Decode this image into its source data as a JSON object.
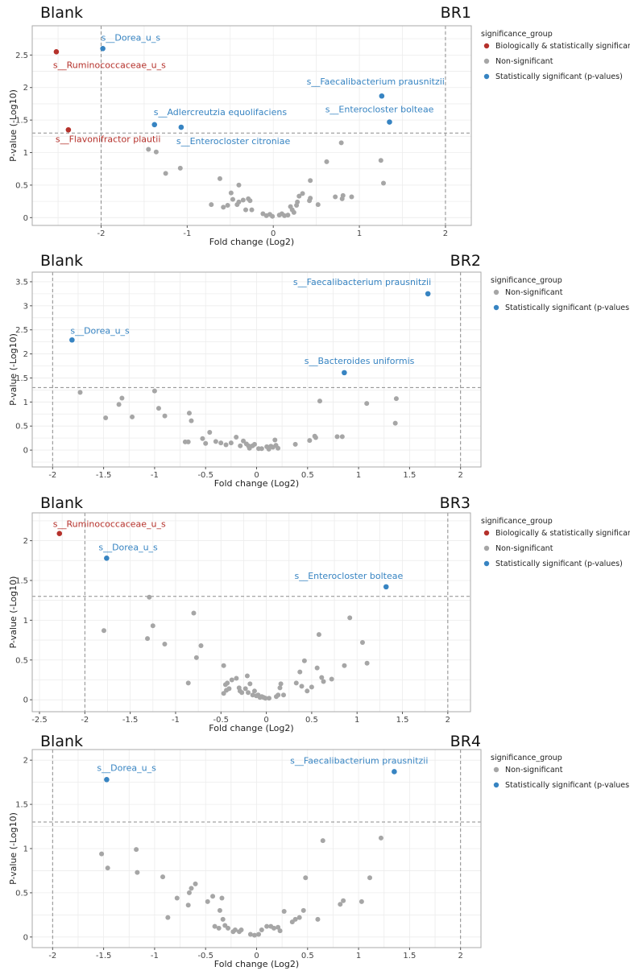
{
  "colors": {
    "biological": "#b5312b",
    "significant": "#3784c2",
    "nonsignificant": "#a6a6a6",
    "grid": "#ececec",
    "threshold_line": "#8c8c8c",
    "panel_border": "#aaaaaa"
  },
  "chart_data": [
    {
      "type": "scatter",
      "left_label": "Blank",
      "right_label": "BR1",
      "xlabel": "Fold change (Log2)",
      "ylabel": "P-value (-Log10)",
      "xlim": [
        -2.8,
        2.3
      ],
      "ylim": [
        -0.12,
        2.95
      ],
      "xticks": [
        -2,
        -1,
        0,
        1,
        2
      ],
      "yticks": [
        0,
        0.5,
        1,
        1.5,
        2,
        2.5
      ],
      "vlines": [
        -2,
        2
      ],
      "hline": 1.3,
      "grid": true,
      "legend_position": "right",
      "legend": {
        "title": "significance_group",
        "entries": [
          {
            "label": "Biologically & statistically significant",
            "group": "biological"
          },
          {
            "label": "Non-significant",
            "group": "nonsignificant"
          },
          {
            "label": "Statistically significant (p-values)",
            "group": "significant"
          }
        ]
      },
      "labeled_points": [
        {
          "label": "s__Dorea_u_s",
          "x": -1.98,
          "y": 2.6,
          "group": "significant",
          "label_anchor": "start",
          "label_dx": -2,
          "label_dy": -10
        },
        {
          "label": "s__Ruminococcaceae_u_s",
          "x": -2.52,
          "y": 2.55,
          "group": "biological",
          "label_anchor": "start",
          "label_dx": -4,
          "label_dy": 20
        },
        {
          "label": "s__Faecalibacterium prausnitzii",
          "x": 1.26,
          "y": 1.87,
          "group": "significant",
          "label_anchor": "end",
          "label_dx": 78,
          "label_dy": -14
        },
        {
          "label": "s__Adlercreutzia equolifaciens",
          "x": -1.38,
          "y": 1.43,
          "group": "significant",
          "label_anchor": "start",
          "label_dx": -1,
          "label_dy": -12
        },
        {
          "label": "s__Enterocloster bolteae",
          "x": 1.35,
          "y": 1.47,
          "group": "significant",
          "label_anchor": "end",
          "label_dx": 55,
          "label_dy": -12
        },
        {
          "label": "s__Flavonifractor plautii",
          "x": -2.38,
          "y": 1.35,
          "group": "biological",
          "label_anchor": "start",
          "label_dx": -16,
          "label_dy": 15
        },
        {
          "label": "s__Enterocloster citroniae",
          "x": -1.07,
          "y": 1.39,
          "group": "significant",
          "label_anchor": "start",
          "label_dx": -6,
          "label_dy": 21
        }
      ],
      "points": [
        [
          -1.45,
          1.05
        ],
        [
          -1.36,
          1.01
        ],
        [
          -1.08,
          0.76
        ],
        [
          -1.25,
          0.68
        ],
        [
          -0.72,
          0.2
        ],
        [
          -0.62,
          0.6
        ],
        [
          -0.58,
          0.16
        ],
        [
          -0.53,
          0.19
        ],
        [
          -0.49,
          0.38
        ],
        [
          -0.47,
          0.28
        ],
        [
          -0.42,
          0.2
        ],
        [
          -0.4,
          0.5
        ],
        [
          -0.4,
          0.24
        ],
        [
          -0.35,
          0.27
        ],
        [
          -0.32,
          0.12
        ],
        [
          -0.29,
          0.29
        ],
        [
          -0.27,
          0.26
        ],
        [
          -0.25,
          0.12
        ],
        [
          -0.12,
          0.06
        ],
        [
          -0.08,
          0.03
        ],
        [
          -0.04,
          0.05
        ],
        [
          -0.01,
          0.02
        ],
        [
          0.07,
          0.04
        ],
        [
          0.1,
          0.06
        ],
        [
          0.13,
          0.03
        ],
        [
          0.17,
          0.04
        ],
        [
          0.2,
          0.17
        ],
        [
          0.22,
          0.12
        ],
        [
          0.24,
          0.08
        ],
        [
          0.27,
          0.19
        ],
        [
          0.28,
          0.24
        ],
        [
          0.3,
          0.33
        ],
        [
          0.34,
          0.37
        ],
        [
          0.42,
          0.26
        ],
        [
          0.43,
          0.3
        ],
        [
          0.43,
          0.57
        ],
        [
          0.52,
          0.2
        ],
        [
          0.62,
          0.86
        ],
        [
          0.72,
          0.32
        ],
        [
          0.8,
          0.29
        ],
        [
          0.81,
          0.34
        ],
        [
          0.79,
          1.15
        ],
        [
          0.91,
          0.32
        ],
        [
          1.25,
          0.88
        ],
        [
          1.28,
          0.53
        ]
      ]
    },
    {
      "type": "scatter",
      "left_label": "Blank",
      "right_label": "BR2",
      "xlabel": "Fold change (Log2)",
      "ylabel": "P-value (-Log10)",
      "xlim": [
        -2.2,
        2.2
      ],
      "ylim": [
        -0.35,
        3.7
      ],
      "xticks": [
        -2,
        -1.5,
        -1,
        -0.5,
        0,
        0.5,
        1,
        1.5,
        2
      ],
      "yticks": [
        0,
        0.5,
        1,
        1.5,
        2,
        2.5,
        3,
        3.5
      ],
      "vlines": [
        -2,
        2
      ],
      "hline": 1.3,
      "grid": true,
      "legend_position": "right",
      "legend": {
        "title": "significance_group",
        "entries": [
          {
            "label": "Non-significant",
            "group": "nonsignificant"
          },
          {
            "label": "Statistically significant (p-values)",
            "group": "significant"
          }
        ]
      },
      "labeled_points": [
        {
          "label": "s__Faecalibacterium prausnitzii",
          "x": 1.68,
          "y": 3.25,
          "group": "significant",
          "label_anchor": "end",
          "label_dx": 4,
          "label_dy": -11
        },
        {
          "label": "s__Dorea_u_s",
          "x": -1.81,
          "y": 2.29,
          "group": "significant",
          "label_anchor": "start",
          "label_dx": -2,
          "label_dy": -8
        },
        {
          "label": "s__Bacteroides uniformis",
          "x": 0.86,
          "y": 1.61,
          "group": "significant",
          "label_anchor": "end",
          "label_dx": 87,
          "label_dy": -11
        }
      ],
      "points": [
        [
          -1.73,
          1.2
        ],
        [
          -1.48,
          0.67
        ],
        [
          -1.35,
          0.95
        ],
        [
          -1.32,
          1.08
        ],
        [
          -1.22,
          0.69
        ],
        [
          -1.0,
          1.23
        ],
        [
          -0.96,
          0.87
        ],
        [
          -0.9,
          0.71
        ],
        [
          -0.7,
          0.17
        ],
        [
          -0.67,
          0.17
        ],
        [
          -0.66,
          0.77
        ],
        [
          -0.64,
          0.61
        ],
        [
          -0.53,
          0.24
        ],
        [
          -0.5,
          0.14
        ],
        [
          -0.46,
          0.37
        ],
        [
          -0.4,
          0.18
        ],
        [
          -0.35,
          0.15
        ],
        [
          -0.3,
          0.11
        ],
        [
          -0.25,
          0.15
        ],
        [
          -0.2,
          0.27
        ],
        [
          -0.16,
          0.09
        ],
        [
          -0.13,
          0.19
        ],
        [
          -0.1,
          0.13
        ],
        [
          -0.08,
          0.09
        ],
        [
          -0.07,
          0.04
        ],
        [
          -0.04,
          0.09
        ],
        [
          -0.02,
          0.12
        ],
        [
          0.02,
          0.03
        ],
        [
          0.05,
          0.03
        ],
        [
          0.1,
          0.07
        ],
        [
          0.12,
          0.02
        ],
        [
          0.14,
          0.08
        ],
        [
          0.16,
          0.06
        ],
        [
          0.18,
          0.21
        ],
        [
          0.19,
          0.1
        ],
        [
          0.21,
          0.04
        ],
        [
          0.38,
          0.12
        ],
        [
          0.52,
          0.2
        ],
        [
          0.57,
          0.29
        ],
        [
          0.58,
          0.26
        ],
        [
          0.62,
          1.02
        ],
        [
          0.79,
          0.28
        ],
        [
          0.84,
          0.28
        ],
        [
          1.08,
          0.97
        ],
        [
          1.36,
          0.56
        ],
        [
          1.37,
          1.07
        ]
      ]
    },
    {
      "type": "scatter",
      "left_label": "Blank",
      "right_label": "BR3",
      "xlabel": "Fold change (Log2)",
      "ylabel": "P-value (-Log10)",
      "xlim": [
        -2.58,
        2.25
      ],
      "ylim": [
        -0.15,
        2.35
      ],
      "xticks": [
        -2.5,
        -2,
        -1.5,
        -1,
        -0.5,
        0,
        0.5,
        1,
        1.5,
        2
      ],
      "yticks": [
        0,
        0.5,
        1,
        1.5,
        2
      ],
      "vlines": [
        -2,
        2
      ],
      "hline": 1.3,
      "grid": true,
      "legend_position": "right",
      "legend": {
        "title": "significance_group",
        "entries": [
          {
            "label": "Biologically & statistically significant",
            "group": "biological"
          },
          {
            "label": "Non-significant",
            "group": "nonsignificant"
          },
          {
            "label": "Statistically significant (p-values)",
            "group": "significant"
          }
        ]
      },
      "labeled_points": [
        {
          "label": "s__Ruminococcaceae_u_s",
          "x": -2.28,
          "y": 2.09,
          "group": "biological",
          "label_anchor": "start",
          "label_dx": -8,
          "label_dy": -8
        },
        {
          "label": "s__Dorea_u_s",
          "x": -1.76,
          "y": 1.78,
          "group": "significant",
          "label_anchor": "start",
          "label_dx": -10,
          "label_dy": -10
        },
        {
          "label": "s__Enterocloster bolteae",
          "x": 1.32,
          "y": 1.42,
          "group": "significant",
          "label_anchor": "end",
          "label_dx": 21,
          "label_dy": -10
        }
      ],
      "points": [
        [
          -1.79,
          0.87
        ],
        [
          -1.31,
          0.77
        ],
        [
          -1.29,
          1.29
        ],
        [
          -1.25,
          0.93
        ],
        [
          -1.12,
          0.7
        ],
        [
          -0.86,
          0.21
        ],
        [
          -0.8,
          1.09
        ],
        [
          -0.77,
          0.53
        ],
        [
          -0.72,
          0.68
        ],
        [
          -0.47,
          0.43
        ],
        [
          -0.47,
          0.08
        ],
        [
          -0.45,
          0.19
        ],
        [
          -0.44,
          0.12
        ],
        [
          -0.43,
          0.21
        ],
        [
          -0.41,
          0.14
        ],
        [
          -0.38,
          0.25
        ],
        [
          -0.33,
          0.27
        ],
        [
          -0.3,
          0.15
        ],
        [
          -0.29,
          0.11
        ],
        [
          -0.27,
          0.09
        ],
        [
          -0.23,
          0.14
        ],
        [
          -0.21,
          0.3
        ],
        [
          -0.2,
          0.09
        ],
        [
          -0.18,
          0.2
        ],
        [
          -0.15,
          0.06
        ],
        [
          -0.13,
          0.11
        ],
        [
          -0.11,
          0.05
        ],
        [
          -0.09,
          0.06
        ],
        [
          -0.07,
          0.03
        ],
        [
          -0.05,
          0.04
        ],
        [
          -0.03,
          0.03
        ],
        [
          -0.01,
          0.02
        ],
        [
          0.03,
          0.02
        ],
        [
          0.11,
          0.04
        ],
        [
          0.13,
          0.06
        ],
        [
          0.15,
          0.15
        ],
        [
          0.16,
          0.2
        ],
        [
          0.19,
          0.06
        ],
        [
          0.33,
          0.21
        ],
        [
          0.37,
          0.35
        ],
        [
          0.39,
          0.17
        ],
        [
          0.42,
          0.49
        ],
        [
          0.45,
          0.11
        ],
        [
          0.5,
          0.16
        ],
        [
          0.56,
          0.4
        ],
        [
          0.58,
          0.82
        ],
        [
          0.61,
          0.28
        ],
        [
          0.63,
          0.23
        ],
        [
          0.72,
          0.26
        ],
        [
          0.86,
          0.43
        ],
        [
          0.92,
          1.03
        ],
        [
          1.06,
          0.72
        ],
        [
          1.11,
          0.46
        ]
      ]
    },
    {
      "type": "scatter",
      "left_label": "Blank",
      "right_label": "BR4",
      "xlabel": "Fold change (Log2)",
      "ylabel": "P-value (-Log10)",
      "xlim": [
        -2.2,
        2.2
      ],
      "ylim": [
        -0.12,
        2.12
      ],
      "xticks": [
        -2,
        -1.5,
        -1,
        -0.5,
        0,
        0.5,
        1,
        1.5,
        2
      ],
      "yticks": [
        0,
        0.5,
        1,
        1.5,
        2
      ],
      "vlines": [
        -2,
        2
      ],
      "hline": 1.3,
      "grid": true,
      "legend_position": "right",
      "legend": {
        "title": "significance_group",
        "entries": [
          {
            "label": "Non-significant",
            "group": "nonsignificant"
          },
          {
            "label": "Statistically significant (p-values)",
            "group": "significant"
          }
        ]
      },
      "labeled_points": [
        {
          "label": "s__Dorea_u_s",
          "x": -1.47,
          "y": 1.78,
          "group": "significant",
          "label_anchor": "start",
          "label_dx": -12,
          "label_dy": -11
        },
        {
          "label": "s__Faecalibacterium prausnitzii",
          "x": 1.35,
          "y": 1.87,
          "group": "significant",
          "label_anchor": "end",
          "label_dx": 42,
          "label_dy": -10
        }
      ],
      "points": [
        [
          -1.52,
          0.94
        ],
        [
          -1.46,
          0.78
        ],
        [
          -1.18,
          0.99
        ],
        [
          -1.17,
          0.73
        ],
        [
          -0.92,
          0.68
        ],
        [
          -0.87,
          0.22
        ],
        [
          -0.78,
          0.44
        ],
        [
          -0.67,
          0.36
        ],
        [
          -0.66,
          0.5
        ],
        [
          -0.64,
          0.55
        ],
        [
          -0.6,
          0.6
        ],
        [
          -0.48,
          0.4
        ],
        [
          -0.43,
          0.46
        ],
        [
          -0.41,
          0.12
        ],
        [
          -0.37,
          0.1
        ],
        [
          -0.36,
          0.3
        ],
        [
          -0.34,
          0.44
        ],
        [
          -0.33,
          0.2
        ],
        [
          -0.31,
          0.13
        ],
        [
          -0.28,
          0.1
        ],
        [
          -0.23,
          0.06
        ],
        [
          -0.21,
          0.08
        ],
        [
          -0.17,
          0.06
        ],
        [
          -0.15,
          0.08
        ],
        [
          -0.06,
          0.03
        ],
        [
          -0.02,
          0.02
        ],
        [
          0.02,
          0.03
        ],
        [
          0.05,
          0.08
        ],
        [
          0.1,
          0.12
        ],
        [
          0.14,
          0.12
        ],
        [
          0.17,
          0.1
        ],
        [
          0.21,
          0.11
        ],
        [
          0.23,
          0.07
        ],
        [
          0.27,
          0.29
        ],
        [
          0.35,
          0.17
        ],
        [
          0.38,
          0.2
        ],
        [
          0.42,
          0.22
        ],
        [
          0.46,
          0.3
        ],
        [
          0.48,
          0.67
        ],
        [
          0.6,
          0.2
        ],
        [
          0.65,
          1.09
        ],
        [
          0.82,
          0.37
        ],
        [
          0.85,
          0.41
        ],
        [
          1.03,
          0.4
        ],
        [
          1.11,
          0.67
        ],
        [
          1.22,
          1.12
        ]
      ]
    }
  ]
}
